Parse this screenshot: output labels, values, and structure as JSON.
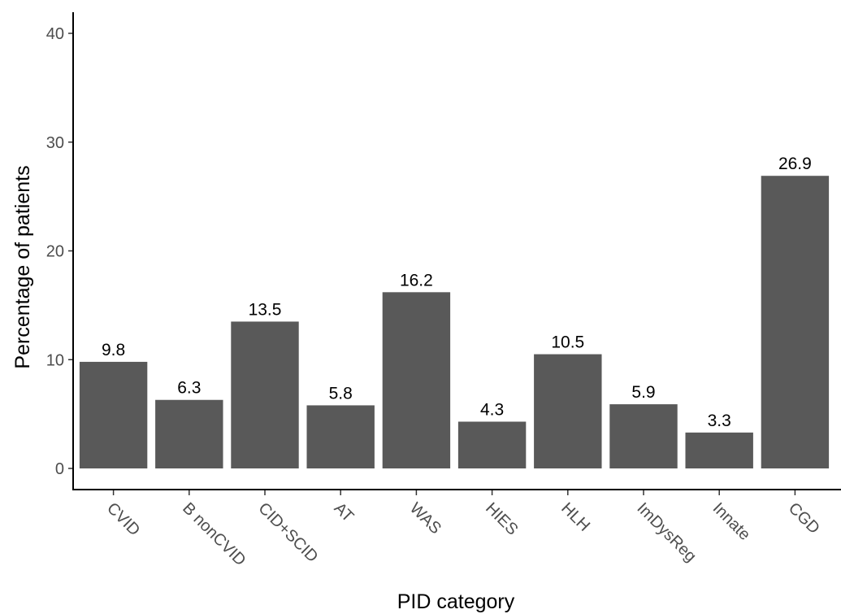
{
  "chart_data": {
    "type": "bar",
    "categories": [
      "CVID",
      "B nonCVID",
      "CID+SCID",
      "AT",
      "WAS",
      "HIES",
      "HLH",
      "ImDysReg",
      "Innate",
      "CGD"
    ],
    "values": [
      9.8,
      6.3,
      13.5,
      5.8,
      16.2,
      4.3,
      10.5,
      5.9,
      3.3,
      26.9
    ],
    "value_labels": [
      "9.8",
      "6.3",
      "13.5",
      "5.8",
      "16.2",
      "4.3",
      "10.5",
      "5.9",
      "3.3",
      "26.9"
    ],
    "xlabel": "PID category",
    "ylabel": "Percentage of patients",
    "ylim": [
      0,
      40
    ],
    "yticks": [
      0,
      10,
      20,
      30,
      40
    ],
    "grid": false,
    "bar_color": "#595959"
  }
}
